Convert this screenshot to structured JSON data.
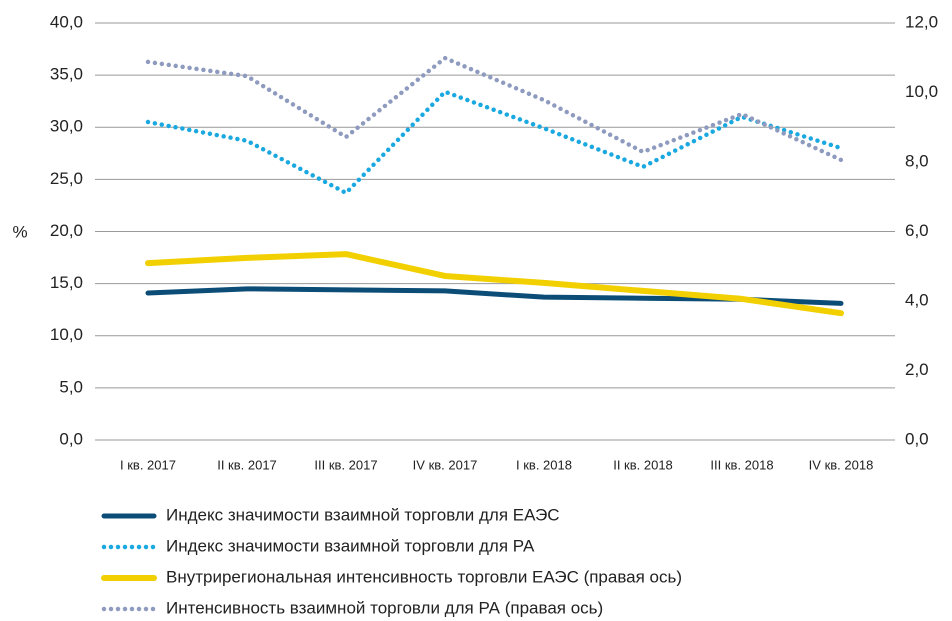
{
  "chart_data": {
    "type": "line",
    "y_axis_label": "%",
    "categories": [
      "I кв. 2017",
      "II кв. 2017",
      "III кв. 2017",
      "IV кв. 2017",
      "I кв. 2018",
      "II кв. 2018",
      "III кв. 2018",
      "IV кв. 2018"
    ],
    "ylim": [
      0,
      40
    ],
    "yticks": [
      {
        "value": 0,
        "label": "0,0"
      },
      {
        "value": 5,
        "label": "5,0"
      },
      {
        "value": 10,
        "label": "10,0"
      },
      {
        "value": 15,
        "label": "15,0"
      },
      {
        "value": 20,
        "label": "20,0"
      },
      {
        "value": 25,
        "label": "25,0"
      },
      {
        "value": 30,
        "label": "30,0"
      },
      {
        "value": 35,
        "label": "35,0"
      },
      {
        "value": 40,
        "label": "40,0"
      }
    ],
    "y2lim": [
      0,
      12
    ],
    "y2ticks": [
      {
        "value": 0,
        "label": "0,0"
      },
      {
        "value": 2,
        "label": "2,0"
      },
      {
        "value": 4,
        "label": "4,0"
      },
      {
        "value": 6,
        "label": "6,0"
      },
      {
        "value": 8,
        "label": "8,0"
      },
      {
        "value": 10,
        "label": "10,0"
      },
      {
        "value": 12,
        "label": "12,0"
      }
    ],
    "grid": true,
    "series": [
      {
        "name": "Индекс значимости взаимной торговли для ЕАЭС",
        "color": "#0c4d78",
        "style": "solid",
        "axis": "y",
        "values": [
          14.1,
          14.5,
          14.4,
          14.3,
          13.7,
          13.6,
          13.5,
          13.1
        ]
      },
      {
        "name": "Индекс значимости взаимной торговли для РА",
        "color": "#19a8e0",
        "style": "dotted",
        "axis": "y",
        "values": [
          30.5,
          28.7,
          23.7,
          33.4,
          29.9,
          26.2,
          31.0,
          28.0
        ]
      },
      {
        "name": "Внутрирегиональная интенсивность торговли ЕАЭС (правая ось)",
        "color": "#f2d000",
        "style": "solid",
        "axis": "y2",
        "values": [
          5.09,
          5.24,
          5.35,
          4.72,
          4.52,
          4.29,
          4.06,
          3.65
        ]
      },
      {
        "name": "Интенсивность взаимной торговли для РА (правая ось)",
        "color": "#8e9bbf",
        "style": "dotted",
        "axis": "y2",
        "values": [
          10.88,
          10.47,
          8.72,
          10.99,
          9.78,
          8.29,
          9.38,
          8.06
        ]
      }
    ]
  }
}
